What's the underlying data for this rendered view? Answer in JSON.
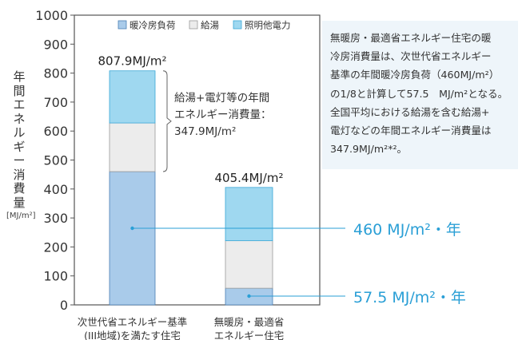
{
  "chart_data": {
    "type": "bar",
    "stacked": true,
    "categories": [
      [
        "次世代省エネルギー基準",
        "(III地域)を満たす住宅"
      ],
      [
        "無暖房・最適省",
        "エネルギー住宅"
      ]
    ],
    "series": [
      {
        "name": "暖冷房負荷",
        "values": [
          460,
          57.5
        ]
      },
      {
        "name": "給湯",
        "values": [
          167.9,
          163.9
        ]
      },
      {
        "name": "照明他電力",
        "values": [
          180,
          184
        ]
      }
    ],
    "totals": [
      "807.9MJ/m²",
      "405.4MJ/m²"
    ],
    "ylabel": [
      "年",
      "間",
      "エ",
      "ネ",
      "ル",
      "ギ",
      "ー",
      "消",
      "費",
      "量"
    ],
    "yunit": "[MJ/m²]",
    "ylim": [
      0,
      1000
    ],
    "yticks": [
      0,
      100,
      200,
      300,
      400,
      500,
      600,
      700,
      800,
      900,
      1000
    ],
    "legend_position": "top",
    "bracket_annotation": [
      "給湯+電灯等の年間",
      "エネルギー消費量：",
      "347.9MJ/m²"
    ],
    "callouts": [
      "460 MJ/m²・年",
      "57.5 MJ/m²・年"
    ],
    "colors": {
      "暖冷房負荷": "#a9cbea",
      "給湯": "#ececec",
      "照明他電力": "#9fd8f0",
      "callout": "#2a9fd6"
    }
  },
  "note": {
    "lines": [
      "無暖房・最適省エネルギー住宅の暖",
      "冷房消費量は、次世代省エネルギー",
      "基準の年間暖冷房負荷（460MJ/m²）",
      "の1/8と計算して57.5　MJ/m²となる。",
      "全国平均における給湯を含む給湯+",
      "電灯などの年間エネルギー消費量は",
      "347.9MJ/m²*²。"
    ]
  }
}
